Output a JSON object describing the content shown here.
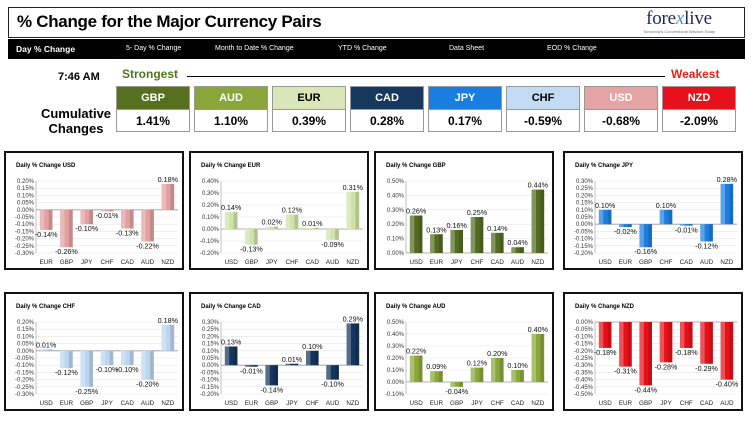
{
  "header": {
    "title": "% Change for the Major Currency Pairs",
    "logo": {
      "brand_prefix": "fore",
      "brand_x": "x",
      "brand_suffix": "live",
      "tagline": "Tomorrow's Conventional Wisdom Today"
    }
  },
  "nav": {
    "tabs": [
      {
        "label": "Day % Change",
        "active": true
      },
      {
        "label": "5- Day % Change",
        "active": false
      },
      {
        "label": "Month to Date % Change",
        "active": false
      },
      {
        "label": "YTD % Change",
        "active": false
      },
      {
        "label": "Data Sheet",
        "active": false
      },
      {
        "label": "EOD % Change",
        "active": false
      }
    ]
  },
  "summary": {
    "time": "7:46 AM",
    "strongest_label": "Strongest",
    "weakest_label": "Weakest",
    "cumulative_label": "Cumulative Changes",
    "currencies": [
      {
        "code": "GBP",
        "value": "1.41%",
        "color": "#56701f",
        "text_color": "#ffffff"
      },
      {
        "code": "AUD",
        "value": "1.10%",
        "color": "#8aa63a",
        "text_color": "#ffffff"
      },
      {
        "code": "EUR",
        "value": "0.39%",
        "color": "#d8e6b8",
        "text_color": "#000000"
      },
      {
        "code": "CAD",
        "value": "0.28%",
        "color": "#16375e",
        "text_color": "#ffffff"
      },
      {
        "code": "JPY",
        "value": "0.17%",
        "color": "#1a7de0",
        "text_color": "#ffffff"
      },
      {
        "code": "CHF",
        "value": "-0.59%",
        "color": "#c4dcf3",
        "text_color": "#000000"
      },
      {
        "code": "USD",
        "value": "-0.68%",
        "color": "#e6a3a3",
        "text_color": "#ffffff"
      },
      {
        "code": "NZD",
        "value": "-2.09%",
        "color": "#e8101a",
        "text_color": "#ffffff"
      }
    ]
  },
  "chart_data": [
    {
      "type": "bar",
      "title": "Daily % Change USD",
      "categories": [
        "EUR",
        "GBP",
        "JPY",
        "CHF",
        "CAD",
        "AUD",
        "NZD"
      ],
      "values": [
        -0.14,
        -0.26,
        -0.1,
        -0.01,
        -0.13,
        -0.22,
        0.18
      ],
      "ylim": [
        -0.3,
        0.2
      ],
      "yticks": [
        0.2,
        0.15,
        0.1,
        0.05,
        0.0,
        -0.05,
        -0.1,
        -0.15,
        -0.2,
        -0.25,
        -0.3
      ],
      "color": "#e2a0a0"
    },
    {
      "type": "bar",
      "title": "Daily % Change EUR",
      "categories": [
        "USD",
        "GBP",
        "JPY",
        "CHF",
        "CAD",
        "AUD",
        "NZD"
      ],
      "values": [
        0.14,
        -0.13,
        0.02,
        0.12,
        0.01,
        -0.09,
        0.31
      ],
      "ylim": [
        -0.2,
        0.4
      ],
      "yticks": [
        0.4,
        0.3,
        0.2,
        0.1,
        0.0,
        -0.1,
        -0.2
      ],
      "color": "#cfe2a8"
    },
    {
      "type": "bar",
      "title": "Daily % Change GBP",
      "categories": [
        "USD",
        "EUR",
        "JPY",
        "CHF",
        "CAD",
        "AUD",
        "NZD"
      ],
      "values": [
        0.26,
        0.13,
        0.16,
        0.25,
        0.14,
        0.04,
        0.44
      ],
      "ylim": [
        0.0,
        0.5
      ],
      "yticks": [
        0.5,
        0.4,
        0.3,
        0.2,
        0.1,
        0.0
      ],
      "color": "#536b22"
    },
    {
      "type": "bar",
      "title": "Daily % Change JPY",
      "categories": [
        "USD",
        "EUR",
        "GBP",
        "CHF",
        "CAD",
        "AUD",
        "NZD"
      ],
      "values": [
        0.1,
        -0.02,
        -0.16,
        0.1,
        -0.01,
        -0.12,
        0.28
      ],
      "ylim": [
        -0.2,
        0.3
      ],
      "yticks": [
        0.3,
        0.25,
        0.2,
        0.15,
        0.1,
        0.05,
        0.0,
        -0.05,
        -0.1,
        -0.15,
        -0.2
      ],
      "color": "#1c7fe0"
    },
    {
      "type": "bar",
      "title": "Daily % Change CHF",
      "categories": [
        "USD",
        "EUR",
        "GBP",
        "JPY",
        "CAD",
        "AUD",
        "NZD"
      ],
      "values": [
        0.01,
        -0.12,
        -0.25,
        -0.1,
        -0.1,
        -0.2,
        0.18
      ],
      "ylim": [
        -0.3,
        0.2
      ],
      "yticks": [
        0.2,
        0.15,
        0.1,
        0.05,
        0.0,
        -0.05,
        -0.1,
        -0.15,
        -0.2,
        -0.25,
        -0.3
      ],
      "color": "#bcd6ef"
    },
    {
      "type": "bar",
      "title": "Daily % Change CAD",
      "categories": [
        "USD",
        "EUR",
        "GBP",
        "JPY",
        "CHF",
        "AUD",
        "NZD"
      ],
      "values": [
        0.13,
        -0.01,
        -0.14,
        0.01,
        0.1,
        -0.1,
        0.29
      ],
      "ylim": [
        -0.2,
        0.3
      ],
      "yticks": [
        0.3,
        0.25,
        0.2,
        0.15,
        0.1,
        0.05,
        0.0,
        -0.05,
        -0.1,
        -0.15,
        -0.2
      ],
      "color": "#15355c"
    },
    {
      "type": "bar",
      "title": "Daily % Change AUD",
      "categories": [
        "USD",
        "EUR",
        "GBP",
        "JPY",
        "CHF",
        "CAD",
        "NZD"
      ],
      "values": [
        0.22,
        0.09,
        -0.04,
        0.12,
        0.2,
        0.1,
        0.4
      ],
      "ylim": [
        -0.1,
        0.5
      ],
      "yticks": [
        0.5,
        0.4,
        0.3,
        0.2,
        0.1,
        0.0,
        -0.1
      ],
      "color": "#8aa83a"
    },
    {
      "type": "bar",
      "title": "Daily % Change NZD",
      "categories": [
        "USD",
        "EUR",
        "GBP",
        "JPY",
        "CHF",
        "CAD",
        "AUD"
      ],
      "values": [
        -0.18,
        -0.31,
        -0.44,
        -0.28,
        -0.18,
        -0.29,
        -0.4
      ],
      "ylim": [
        -0.5,
        0.0
      ],
      "yticks": [
        0.0,
        -0.05,
        -0.1,
        -0.15,
        -0.2,
        -0.25,
        -0.3,
        -0.35,
        -0.4,
        -0.45,
        -0.5
      ],
      "color": "#e61019"
    }
  ]
}
